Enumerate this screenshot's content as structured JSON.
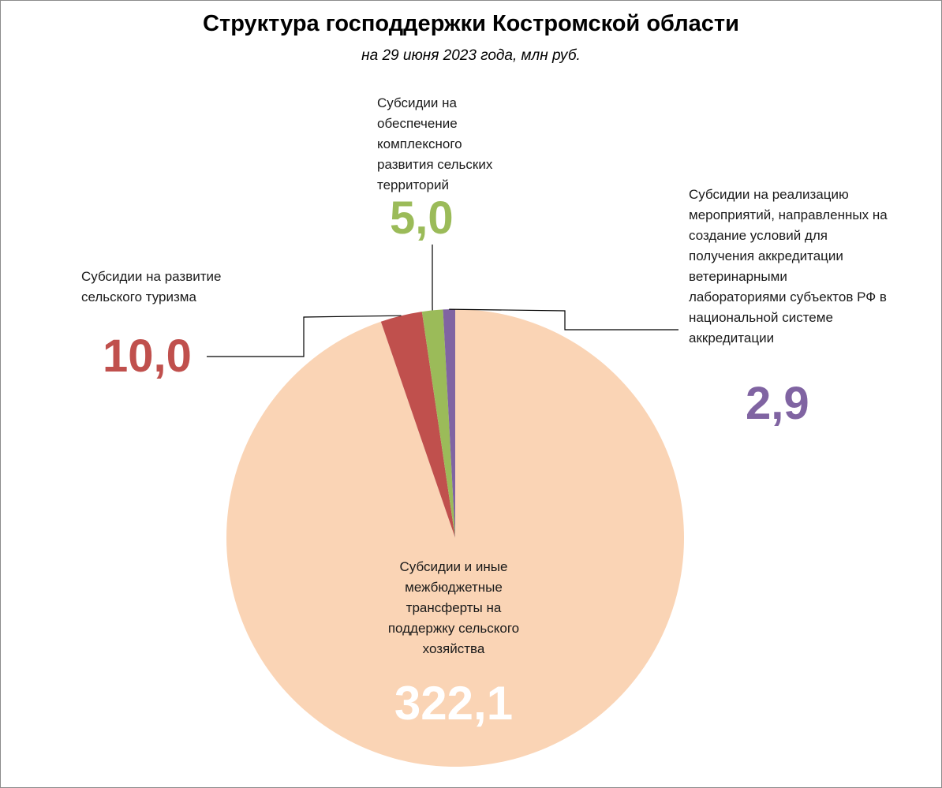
{
  "title": "Структура господдержки Костромской  области",
  "subtitle": "на 29 июня 2023 года, млн руб.",
  "chart_data": {
    "type": "pie",
    "title": "Структура господдержки Костромской  области",
    "subtitle": "на 29 июня 2023 года, млн руб.",
    "slices": [
      {
        "label": "Субсидии и иные межбюджетные трансферты на поддержку сельского хозяйства",
        "label_lines": [
          "Субсидии и иные",
          "межбюджетные",
          "трансферты на",
          "поддержку сельского",
          "хозяйства"
        ],
        "value": 322.1,
        "value_label": "322,1",
        "color": "#FAD4B5",
        "value_color": "#FFFFFF"
      },
      {
        "label": "Субсидии на развитие сельского туризма",
        "label_lines": [
          "Субсидии на развитие",
          "сельского туризма"
        ],
        "value": 10.0,
        "value_label": "10,0",
        "color": "#C0504D",
        "value_color": "#C0504D"
      },
      {
        "label": "Субсидии на обеспечение комплексного развития сельских территорий",
        "label_lines": [
          "Субсидии на",
          "обеспечение",
          "комплексного",
          "развития сельских",
          "территорий"
        ],
        "value": 5.0,
        "value_label": "5,0",
        "color": "#9BBB59",
        "value_color": "#9BBB59"
      },
      {
        "label": "Субсидии на реализацию мероприятий, направленных на создание условий для получения аккредитации ветеринарными лабораториями субъектов РФ в национальной системе аккредитации",
        "label_lines": [
          "Субсидии на реализацию",
          "мероприятий, направленных на",
          "создание условий для",
          "получения аккредитации",
          "ветеринарными",
          "лабораториями субъектов РФ в",
          "национальной системе",
          "аккредитации"
        ],
        "value": 2.9,
        "value_label": "2,9",
        "color": "#8064A2",
        "value_color": "#8064A2"
      }
    ],
    "legend": "none",
    "start_angle_deg": 0,
    "direction": "counterclockwise"
  }
}
